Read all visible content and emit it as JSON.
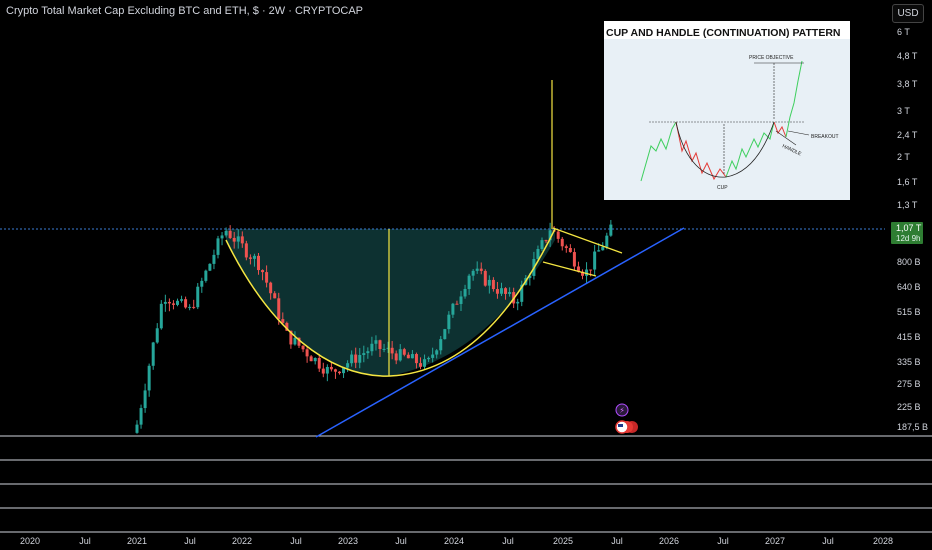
{
  "header": {
    "title": "Crypto Total Market Cap Excluding BTC and ETH, $ · 2W · CRYPTOCAP",
    "currency_button": "USD"
  },
  "inset": {
    "title": "CUP AND HANDLE (CONTINUATION) PATTERN",
    "labels": [
      "PRICE OBJECTIVE",
      "BREAKOUT",
      "HANDLE",
      "CUP"
    ]
  },
  "price_badge": {
    "value": "1,07 T",
    "countdown": "12d 9h"
  },
  "colors": {
    "up": "#26a69a",
    "down": "#ef5350",
    "cup": "#f5e642",
    "trend": "#2962ff",
    "fill": "#0f3a3a",
    "resistance": "#3a7bd5"
  },
  "chart_data": {
    "type": "candlestick",
    "title": "Crypto Total Market Cap Excluding BTC and ETH, $ · 2W · CRYPTOCAP",
    "y_scale": "log",
    "y_ticks": [
      "6 T",
      "4,8 T",
      "3,8 T",
      "3 T",
      "2,4 T",
      "2 T",
      "1,6 T",
      "1,3 T",
      "800 B",
      "640 B",
      "515 B",
      "415 B",
      "335 B",
      "275 B",
      "225 B",
      "187,5 B"
    ],
    "x_ticks": [
      "2020",
      "Jul",
      "2021",
      "Jul",
      "2022",
      "Jul",
      "2023",
      "Jul",
      "2024",
      "Jul",
      "2025",
      "Jul",
      "2026",
      "Jul",
      "2027",
      "Jul",
      "2028"
    ],
    "current_value_label": "1,07 T",
    "approx_close_series": [
      {
        "date": "2021-01",
        "value": 190
      },
      {
        "date": "2021-04",
        "value": 600
      },
      {
        "date": "2021-07",
        "value": 520
      },
      {
        "date": "2021-10",
        "value": 900
      },
      {
        "date": "2021-11",
        "value": 1070
      },
      {
        "date": "2022-03",
        "value": 780
      },
      {
        "date": "2022-06",
        "value": 420
      },
      {
        "date": "2022-11",
        "value": 300
      },
      {
        "date": "2023-04",
        "value": 380
      },
      {
        "date": "2023-10",
        "value": 320
      },
      {
        "date": "2024-03",
        "value": 750
      },
      {
        "date": "2024-08",
        "value": 560
      },
      {
        "date": "2024-12",
        "value": 1080
      },
      {
        "date": "2025-04",
        "value": 720
      },
      {
        "date": "2025-07",
        "value": 1070
      }
    ]
  }
}
